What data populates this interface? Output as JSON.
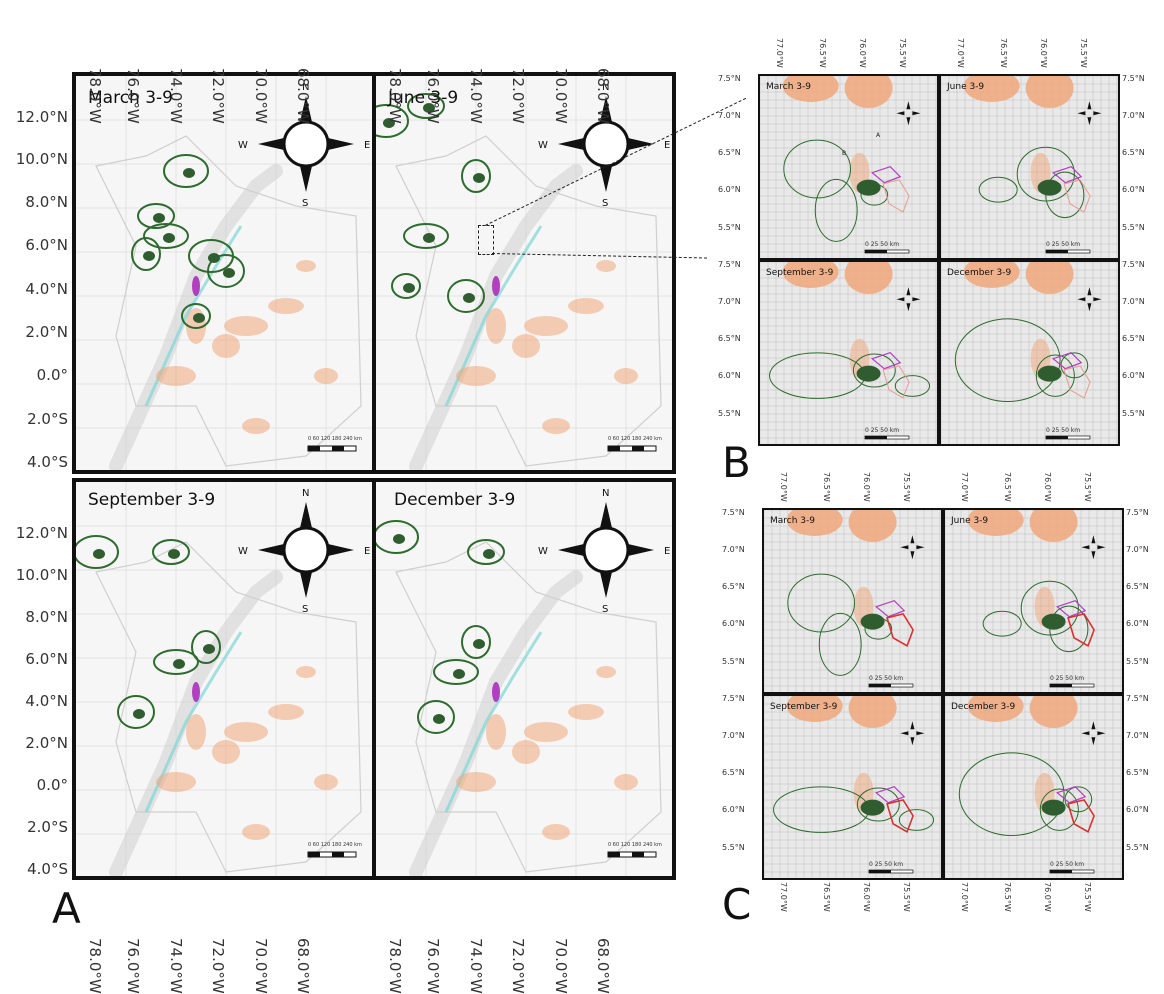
{
  "figure_letters": {
    "a": "A",
    "b": "B",
    "c": "C"
  },
  "panel_a": {
    "lon_labels": [
      "78.0°W",
      "76.0°W",
      "74.0°W",
      "72.0°W",
      "70.0°W",
      "68.0°W"
    ],
    "lat_labels": [
      "12.0°N",
      "10.0°N",
      "8.0°N",
      "6.0°N",
      "4.0°N",
      "2.0°N",
      "0.0°",
      "2.0°S",
      "4.0°S"
    ],
    "maps": [
      {
        "title": "March 3-9"
      },
      {
        "title": "June 3-9"
      },
      {
        "title": "September 3-9"
      },
      {
        "title": "December 3-9"
      }
    ],
    "compass": {
      "n": "N",
      "s": "S",
      "e": "E",
      "w": "W"
    },
    "scale_label": "0   60  120  180  240 km"
  },
  "panel_b": {
    "lon_labels": [
      "77.0°W",
      "76.5°W",
      "76.0°W",
      "75.5°W"
    ],
    "lat_labels": [
      "7.5°N",
      "7.0°N",
      "6.5°N",
      "6.0°N",
      "5.5°N"
    ],
    "maps": [
      {
        "title": "March 3-9"
      },
      {
        "title": "June 3-9"
      },
      {
        "title": "September 3-9"
      },
      {
        "title": "December 3-9"
      }
    ],
    "scale_label": "0     25     50 km",
    "site_labels": {
      "a": "A",
      "b": "B"
    }
  },
  "panel_c": {
    "lon_labels": [
      "77.0°W",
      "76.5°W",
      "76.0°W",
      "75.5°W"
    ],
    "lat_labels": [
      "7.5°N",
      "7.0°N",
      "6.5°N",
      "6.0°N",
      "5.5°N"
    ],
    "maps": [
      {
        "title": "March 3-9"
      },
      {
        "title": "June 3-9"
      },
      {
        "title": "September 3-9"
      },
      {
        "title": "December 3-9"
      }
    ],
    "scale_label": "0     25     50 km"
  },
  "colors": {
    "contour_green": "#2e6b2e",
    "fill_green": "#2f5d2f",
    "magenta": "#b13fbf",
    "red": "#d93030",
    "orange": "#f0a77a",
    "cyan": "#7fd6d6",
    "terrain": "#cfcfcf"
  }
}
